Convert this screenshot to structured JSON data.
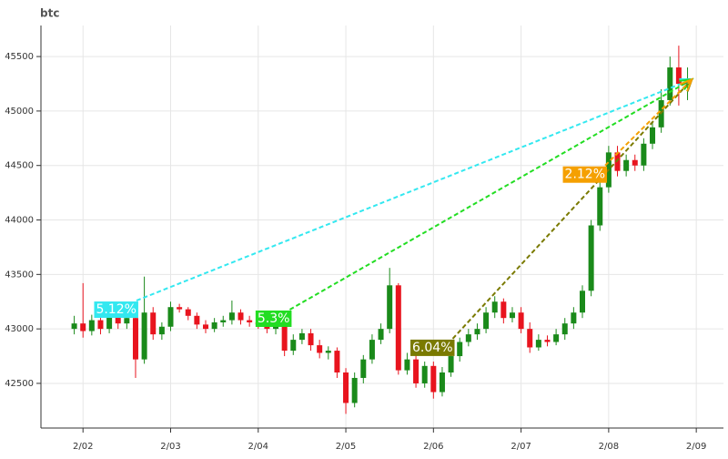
{
  "chart_data": {
    "type": "candlestick",
    "title": "btc",
    "up_color": "#1a8a1a",
    "down_color": "#e8141e",
    "grid": true,
    "x": [
      -0.1,
      0,
      0.1,
      0.2,
      0.3,
      0.4,
      0.5,
      0.6,
      0.7,
      0.8,
      0.9,
      1,
      1.1,
      1.2,
      1.3,
      1.4,
      1.5,
      1.6,
      1.7,
      1.8,
      1.9,
      2,
      2.1,
      2.2,
      2.3,
      2.4,
      2.5,
      2.6,
      2.7,
      2.8,
      2.9,
      3,
      3.1,
      3.2,
      3.3,
      3.4,
      3.5,
      3.6,
      3.7,
      3.8,
      3.9,
      4,
      4.1,
      4.2,
      4.3,
      4.4,
      4.5,
      4.6,
      4.7,
      4.8,
      4.9,
      5,
      5.1,
      5.2,
      5.3,
      5.4,
      5.5,
      5.6,
      5.7,
      5.8,
      5.9,
      6,
      6.1,
      6.2,
      6.3,
      6.4,
      6.5,
      6.6,
      6.7,
      6.8,
      6.9
    ],
    "open": [
      43000,
      43050,
      42980,
      43080,
      43000,
      43150,
      43050,
      43100,
      42720,
      43150,
      42950,
      43020,
      43200,
      43180,
      43120,
      43040,
      43000,
      43060,
      43080,
      43150,
      43080,
      43060,
      43040,
      43000,
      43070,
      42800,
      42900,
      42960,
      42850,
      42780,
      42800,
      42600,
      42320,
      42550,
      42720,
      42900,
      43000,
      43400,
      42620,
      42720,
      42500,
      42660,
      42420,
      42600,
      42750,
      42880,
      42950,
      43000,
      43150,
      43250,
      43100,
      43150,
      43000,
      42830,
      42900,
      42880,
      42950,
      43050,
      43150,
      43350,
      43950,
      44300,
      44620,
      44450,
      44550,
      44500,
      44700,
      44850,
      45100,
      45400,
      45250
    ],
    "high": [
      43120,
      43420,
      43130,
      43120,
      43200,
      43180,
      43150,
      43130,
      43480,
      43200,
      43060,
      43250,
      43230,
      43200,
      43150,
      43080,
      43100,
      43120,
      43260,
      43180,
      43120,
      43090,
      43060,
      43100,
      43100,
      42950,
      43000,
      43000,
      42900,
      42840,
      42830,
      42640,
      42600,
      42760,
      42950,
      43050,
      43560,
      43420,
      42780,
      42760,
      42700,
      42700,
      42650,
      42800,
      42920,
      43000,
      43050,
      43200,
      43300,
      43280,
      43200,
      43200,
      43060,
      42950,
      42940,
      43000,
      43100,
      43200,
      43400,
      44000,
      44350,
      44680,
      44680,
      44600,
      44600,
      44750,
      44900,
      45200,
      45500,
      45600,
      45400
    ],
    "low": [
      42950,
      42920,
      42940,
      42950,
      42960,
      43000,
      43000,
      42550,
      42680,
      42900,
      42900,
      42980,
      43150,
      43080,
      43000,
      42960,
      42970,
      43020,
      43040,
      43040,
      43020,
      43000,
      42960,
      42950,
      42750,
      42760,
      42860,
      42800,
      42730,
      42720,
      42550,
      42220,
      42280,
      42500,
      42680,
      42860,
      42960,
      42580,
      42580,
      42460,
      42460,
      42360,
      42380,
      42560,
      42700,
      42840,
      42900,
      42960,
      43100,
      43050,
      43060,
      42960,
      42780,
      42800,
      42840,
      42850,
      42900,
      43000,
      43100,
      43300,
      43900,
      44250,
      44400,
      44400,
      44450,
      44450,
      44650,
      44800,
      45050,
      45050,
      45100
    ],
    "close": [
      43050,
      42980,
      43080,
      43000,
      43150,
      43050,
      43100,
      42720,
      43150,
      42950,
      43020,
      43200,
      43180,
      43120,
      43040,
      43000,
      43060,
      43080,
      43150,
      43080,
      43060,
      43040,
      43000,
      43070,
      42800,
      42900,
      42960,
      42850,
      42780,
      42800,
      42600,
      42320,
      42550,
      42720,
      42900,
      43000,
      43400,
      42620,
      42720,
      42500,
      42660,
      42420,
      42600,
      42750,
      42880,
      42950,
      43000,
      43150,
      43250,
      43100,
      43150,
      43000,
      42830,
      42900,
      42880,
      42950,
      43050,
      43150,
      43350,
      43950,
      44300,
      44620,
      44450,
      44550,
      44500,
      44700,
      44850,
      45100,
      45400,
      45250,
      45300
    ],
    "xlim": [
      -0.48,
      7.31
    ],
    "xticks": [
      {
        "value": 0,
        "label": "2/02"
      },
      {
        "value": 1,
        "label": "2/03"
      },
      {
        "value": 2,
        "label": "2/04"
      },
      {
        "value": 3,
        "label": "2/05"
      },
      {
        "value": 4,
        "label": "2/06"
      },
      {
        "value": 5,
        "label": "2/07"
      },
      {
        "value": 6,
        "label": "2/08"
      },
      {
        "value": 7,
        "label": "2/09"
      }
    ],
    "ylim": [
      42090,
      45785
    ],
    "yticks": [
      42500,
      43000,
      43500,
      44000,
      44500,
      45000,
      45500
    ],
    "annotations": [
      {
        "label": "5.12%",
        "color": "#33e8f0",
        "x": [
          0.61,
          6.95
        ],
        "y": [
          43260,
          45290
        ]
      },
      {
        "label": "5.3%",
        "color": "#22dd22",
        "x": [
          2.36,
          6.95
        ],
        "y": [
          43177,
          45290
        ]
      },
      {
        "label": "6.04%",
        "color": "#7a7a00",
        "x": [
          4.22,
          6.95
        ],
        "y": [
          42910,
          45290
        ]
      },
      {
        "label": "2.12%",
        "color": "#f5a000",
        "x": [
          5.96,
          6.95
        ],
        "y": [
          44500,
          45290
        ]
      }
    ]
  }
}
